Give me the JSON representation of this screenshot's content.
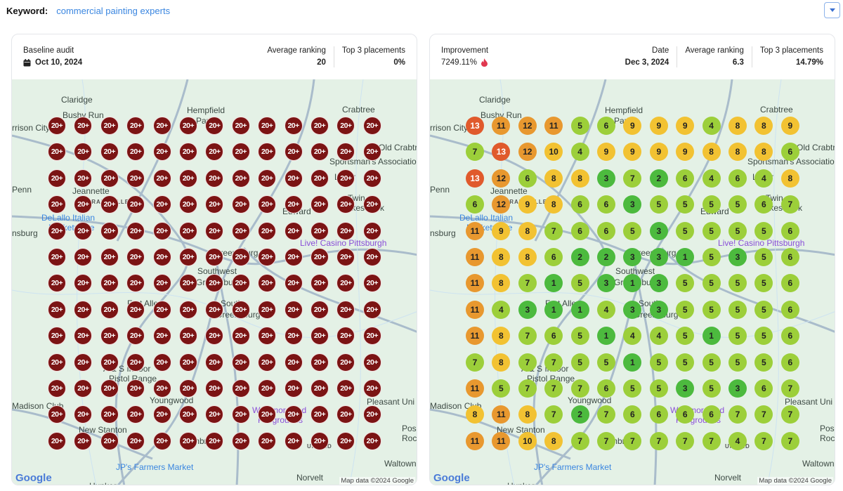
{
  "keyword": {
    "label": "Keyword:",
    "value": "commercial painting experts"
  },
  "colors": {
    "base": "#7b1414",
    "r1_3": "#4cba3e",
    "r4_7": "#9ccf3a",
    "r8_10": "#f2c232",
    "r11_12": "#e8982f",
    "r13": "#e05a2c"
  },
  "baseline": {
    "title": "Baseline audit",
    "date": "Oct 10, 2024",
    "date_icon": "calendar-icon",
    "avg_label": "Average ranking",
    "avg_value": "20",
    "top3_label": "Top 3 placements",
    "top3_value": "0%",
    "grid_label": "20+",
    "grid_rows": 13,
    "grid_cols": 13
  },
  "current": {
    "improvement_label": "Improvement",
    "improvement_value": "7249.11%",
    "improvement_icon": "fire-icon",
    "date_label": "Date",
    "date_value": "Dec 3, 2024",
    "avg_label": "Average ranking",
    "avg_value": "6.3",
    "top3_label": "Top 3 placements",
    "top3_value": "14.79%",
    "grid": [
      [
        13,
        11,
        12,
        11,
        5,
        6,
        9,
        9,
        9,
        4,
        8,
        8,
        9
      ],
      [
        7,
        13,
        12,
        10,
        4,
        9,
        9,
        9,
        9,
        8,
        8,
        8,
        6
      ],
      [
        13,
        12,
        6,
        8,
        8,
        3,
        7,
        2,
        6,
        4,
        6,
        4,
        8
      ],
      [
        6,
        12,
        9,
        8,
        6,
        6,
        3,
        5,
        5,
        5,
        5,
        6,
        7
      ],
      [
        11,
        9,
        8,
        7,
        6,
        6,
        5,
        3,
        5,
        5,
        5,
        5,
        6
      ],
      [
        11,
        8,
        8,
        6,
        2,
        2,
        3,
        3,
        1,
        5,
        3,
        5,
        6
      ],
      [
        11,
        8,
        7,
        1,
        5,
        3,
        1,
        3,
        5,
        5,
        5,
        5,
        6
      ],
      [
        11,
        4,
        3,
        1,
        1,
        4,
        3,
        3,
        5,
        5,
        5,
        5,
        6
      ],
      [
        11,
        8,
        7,
        6,
        5,
        1,
        4,
        4,
        5,
        1,
        5,
        5,
        6
      ],
      [
        7,
        8,
        7,
        7,
        5,
        5,
        1,
        5,
        5,
        5,
        5,
        5,
        6
      ],
      [
        11,
        5,
        7,
        7,
        7,
        6,
        5,
        5,
        3,
        5,
        3,
        6,
        7
      ],
      [
        8,
        11,
        8,
        7,
        2,
        7,
        6,
        6,
        6,
        6,
        7,
        7,
        7
      ],
      [
        11,
        11,
        10,
        8,
        7,
        7,
        7,
        7,
        7,
        7,
        4,
        7,
        7
      ]
    ]
  },
  "map": {
    "labels": [
      "Claridge",
      "Hempfield",
      "Park",
      "Crabtree",
      "Bushy Run",
      "rrison City",
      "Old Crabtree",
      "Sportsman's Association",
      "Penn",
      "Jeannette",
      "GRAPEVILLE",
      "Luxor",
      "Twin",
      "Lakes Park",
      "DeLallo Italian",
      "Marketplace",
      "nsburg",
      "Edward",
      "Live! Casino Pittsburgh",
      "Greensburg",
      "Southwest",
      "Greensburg",
      "Fort Allen",
      "South",
      "Greensburg",
      "A & S Indoor",
      "Pistol Range",
      "Youngwood",
      "Pleasant Uni",
      "Madison Club",
      "Westmoreland",
      "Fairgrounds",
      "New Stanton",
      "Armbrust",
      "Pos",
      "Roc",
      "JP's Farmers Market",
      "Norvelt",
      "Waltown",
      "Hunker",
      "UNITED"
    ],
    "google": "Google",
    "attribution": "Map data ©2024 Google"
  }
}
